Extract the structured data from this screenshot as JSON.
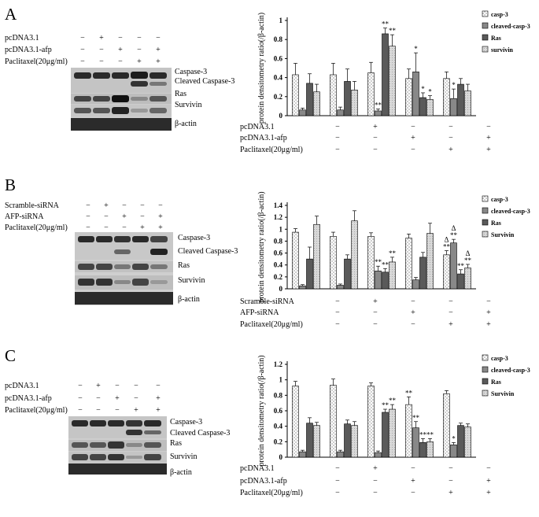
{
  "panels": [
    {
      "letter": "A",
      "blot": {
        "rows": [
          {
            "label": "pcDNA3.1",
            "signs": [
              "−",
              "+",
              "−",
              "−",
              "−"
            ]
          },
          {
            "label": "pcDNA3.1-afp",
            "signs": [
              "−",
              "−",
              "+",
              "−",
              "+"
            ]
          },
          {
            "label": "Paclitaxel(20μg/ml)",
            "signs": [
              "−",
              "−",
              "−",
              "+",
              "+"
            ]
          }
        ],
        "band_labels": [
          "Caspase-3",
          "Cleaved Caspase-3",
          "Ras",
          "Survivin",
          "β-actin"
        ]
      },
      "chart": {
        "ylabel": "protein densitometry ratio(/β-actin)",
        "xrows": [
          {
            "label": "pcDNA3.1",
            "signs": [
              "−",
              "+",
              "−",
              "−",
              "−"
            ]
          },
          {
            "label": "pcDNA3.1-afp",
            "signs": [
              "−",
              "−",
              "+",
              "−",
              "+"
            ]
          },
          {
            "label": "Paclitaxel(20μg/ml)",
            "signs": [
              "−",
              "−",
              "−",
              "+",
              "+"
            ]
          }
        ]
      }
    },
    {
      "letter": "B",
      "blot": {
        "rows": [
          {
            "label": "Scramble-siRNA",
            "signs": [
              "−",
              "+",
              "−",
              "−",
              "−"
            ]
          },
          {
            "label": "AFP-siRNA",
            "signs": [
              "−",
              "−",
              "+",
              "−",
              "+"
            ]
          },
          {
            "label": "Paclitaxel(20μg/ml)",
            "signs": [
              "−",
              "−",
              "−",
              "+",
              "+"
            ]
          }
        ],
        "band_labels": [
          "Caspase-3",
          "Cleaved Caspase-3",
          "Ras",
          "Survivin",
          "β-actin"
        ]
      },
      "chart": {
        "ylabel": "protein densitometry ratio(/β-actin)",
        "xrows": [
          {
            "label": "Scramble-siRNA",
            "signs": [
              "−",
              "+",
              "−",
              "−",
              "−"
            ]
          },
          {
            "label": "AFP-siRNA",
            "signs": [
              "−",
              "−",
              "+",
              "−",
              "+"
            ]
          },
          {
            "label": "Paclitaxel(20μg/ml)",
            "signs": [
              "−",
              "−",
              "−",
              "+",
              "+"
            ]
          }
        ]
      }
    },
    {
      "letter": "C",
      "blot": {
        "rows": [
          {
            "label": "pcDNA3.1",
            "signs": [
              "−",
              "+",
              "−",
              "−",
              "−"
            ]
          },
          {
            "label": "pcDNA3.1-afp",
            "signs": [
              "−",
              "−",
              "+",
              "−",
              "+"
            ]
          },
          {
            "label": "Paclitaxel(20μg/ml)",
            "signs": [
              "−",
              "−",
              "−",
              "+",
              "+"
            ]
          }
        ],
        "band_labels": [
          "Caspase-3",
          "Cleaved Caspase-3",
          "Ras",
          "Survivin",
          "β-actin"
        ]
      },
      "chart": {
        "ylabel": "protein densitometry ratio(/β-actin)",
        "xrows": [
          {
            "label": "pcDNA3.1",
            "signs": [
              "−",
              "+",
              "−",
              "−",
              "−"
            ]
          },
          {
            "label": "pcDNA3.1-afp",
            "signs": [
              "−",
              "−",
              "+",
              "−",
              "+"
            ]
          },
          {
            "label": "Paclitaxel(20μg/ml)",
            "signs": [
              "−",
              "−",
              "−",
              "+",
              "+"
            ]
          }
        ]
      }
    }
  ],
  "chart_data": [
    {
      "type": "bar",
      "panel": "A",
      "ylabel": "protein densitometry ratio(/β-actin)",
      "ylim": [
        0,
        1
      ],
      "yticks": [
        "0",
        "0.2",
        "0.4",
        "0.6",
        "0.8",
        "1"
      ],
      "legend_position": "top-right",
      "series": [
        {
          "name": "casp-3",
          "values": [
            0.43,
            0.43,
            0.45,
            0.39,
            0.39
          ],
          "errors": [
            0.12,
            0.12,
            0.11,
            0.1,
            0.07
          ],
          "annotations": [
            "",
            "",
            "",
            "",
            ""
          ]
        },
        {
          "name": "cleaved-casp-3",
          "values": [
            0.06,
            0.06,
            0.05,
            0.46,
            0.18
          ],
          "errors": [
            0.02,
            0.03,
            0.02,
            0.2,
            0.1
          ],
          "annotations": [
            "",
            "",
            "**",
            "*",
            "*"
          ]
        },
        {
          "name": "Ras",
          "values": [
            0.34,
            0.36,
            0.86,
            0.19,
            0.33
          ],
          "errors": [
            0.1,
            0.13,
            0.06,
            0.05,
            0.06
          ],
          "annotations": [
            "",
            "",
            "**",
            "*",
            ""
          ]
        },
        {
          "name": "survivin",
          "values": [
            0.25,
            0.27,
            0.73,
            0.17,
            0.26
          ],
          "errors": [
            0.08,
            0.09,
            0.12,
            0.04,
            0.07
          ],
          "annotations": [
            "",
            "",
            "**",
            "*",
            ""
          ]
        }
      ]
    },
    {
      "type": "bar",
      "panel": "B",
      "ylabel": "protein densitometry ratio(/β-actin)",
      "ylim": [
        0,
        1.4
      ],
      "yticks": [
        "0",
        "0.2",
        "0.4",
        "0.6",
        "0.8",
        "1",
        "1.2",
        "1.4"
      ],
      "legend_position": "top-right",
      "series": [
        {
          "name": "casp-3",
          "values": [
            0.95,
            0.88,
            0.88,
            0.85,
            0.57
          ],
          "errors": [
            0.06,
            0.07,
            0.06,
            0.07,
            0.07
          ],
          "annotations": [
            "",
            "",
            "",
            "",
            "Δ\n**"
          ]
        },
        {
          "name": "cleaved-casp-3",
          "values": [
            0.05,
            0.06,
            0.3,
            0.15,
            0.77
          ],
          "errors": [
            0.02,
            0.02,
            0.08,
            0.04,
            0.06
          ],
          "annotations": [
            "",
            "",
            "**",
            "",
            "Δ\n**"
          ]
        },
        {
          "name": "Ras",
          "values": [
            0.5,
            0.5,
            0.28,
            0.53,
            0.25
          ],
          "errors": [
            0.2,
            0.07,
            0.06,
            0.08,
            0.07
          ],
          "annotations": [
            "",
            "",
            "**",
            "",
            "**"
          ]
        },
        {
          "name": "Survivin",
          "values": [
            1.08,
            1.14,
            0.45,
            0.93,
            0.35
          ],
          "errors": [
            0.14,
            0.17,
            0.08,
            0.17,
            0.06
          ],
          "annotations": [
            "",
            "",
            "**",
            "",
            "Δ\n**"
          ]
        }
      ]
    },
    {
      "type": "bar",
      "panel": "C",
      "ylabel": "protein densitometry ratio(/β-actin)",
      "ylim": [
        0,
        1.2
      ],
      "yticks": [
        "0",
        "0.2",
        "0.4",
        "0.6",
        "0.8",
        "1",
        "1.2"
      ],
      "legend_position": "top-right",
      "series": [
        {
          "name": "casp-3",
          "values": [
            0.92,
            0.93,
            0.92,
            0.68,
            0.82
          ],
          "errors": [
            0.06,
            0.08,
            0.04,
            0.1,
            0.04
          ],
          "annotations": [
            "",
            "",
            "",
            "**",
            ""
          ]
        },
        {
          "name": "cleaved-casp-3",
          "values": [
            0.07,
            0.07,
            0.06,
            0.38,
            0.16
          ],
          "errors": [
            0.02,
            0.02,
            0.02,
            0.08,
            0.03
          ],
          "annotations": [
            "",
            "",
            "",
            "**",
            "*"
          ]
        },
        {
          "name": "Ras",
          "values": [
            0.44,
            0.43,
            0.58,
            0.19,
            0.41
          ],
          "errors": [
            0.07,
            0.05,
            0.04,
            0.05,
            0.03
          ],
          "annotations": [
            "",
            "",
            "**",
            "**",
            ""
          ]
        },
        {
          "name": "Survivin",
          "values": [
            0.41,
            0.41,
            0.62,
            0.2,
            0.39
          ],
          "errors": [
            0.04,
            0.05,
            0.06,
            0.04,
            0.04
          ],
          "annotations": [
            "",
            "",
            "**",
            "**",
            ""
          ]
        }
      ]
    }
  ]
}
